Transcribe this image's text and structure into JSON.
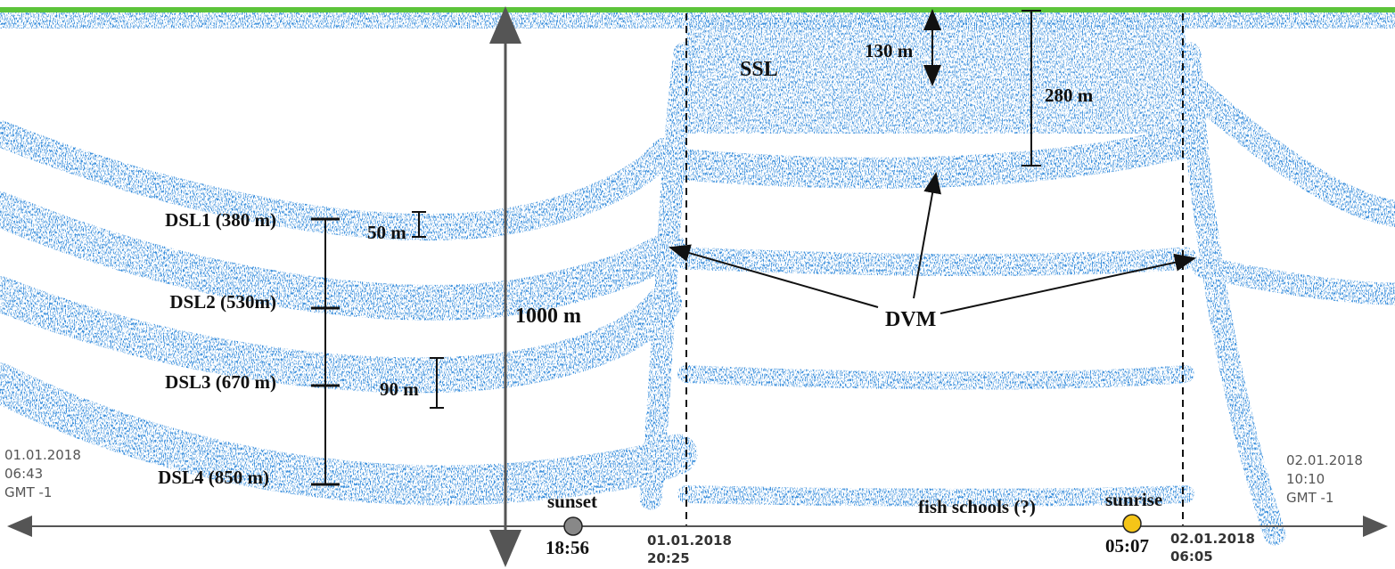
{
  "layers": [
    {
      "label": "DSL1 (380 m)"
    },
    {
      "label": "DSL2 (530m)"
    },
    {
      "label": "DSL3 (670 m)"
    },
    {
      "label": "DSL4 (850 m)"
    }
  ],
  "annotations": {
    "ssl": "SSL",
    "dvm": "DVM",
    "fish_schools": "fish schools (?)",
    "range": "1000 m",
    "ssl_depth": "130 m",
    "ssl_thickness": "280 m",
    "dsl1_thickness": "50 m",
    "dsl3_thickness": "90 m"
  },
  "timeline": {
    "start": {
      "date": "01.01.2018",
      "time": "06:43",
      "zone": "GMT -1"
    },
    "end": {
      "date": "02.01.2018",
      "time": "10:10",
      "zone": "GMT -1"
    },
    "sunset": {
      "label": "sunset",
      "time": "18:56"
    },
    "sunrise": {
      "label": "sunrise",
      "time": "05:07"
    },
    "dusk_marker": {
      "date": "01.01.2018",
      "time": "20:25"
    },
    "dawn_marker": {
      "date": "02.01.2018",
      "time": "06:05"
    }
  }
}
